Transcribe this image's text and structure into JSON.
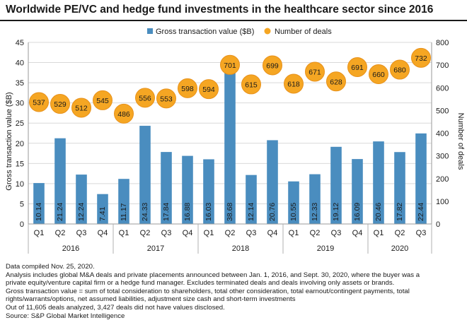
{
  "title": "Worldwide PE/VC and hedge fund investments in the healthcare sector since 2016",
  "colors": {
    "bar": "#4a8dbf",
    "bubble": "#f5a623",
    "bubble_stroke": "#e8911a",
    "grid": "#d9d9d9",
    "text": "#1a1a1a"
  },
  "chart_data": {
    "type": "bar",
    "quarters": [
      "Q1",
      "Q2",
      "Q3",
      "Q4",
      "Q1",
      "Q2",
      "Q3",
      "Q4",
      "Q1",
      "Q2",
      "Q3",
      "Q4",
      "Q1",
      "Q2",
      "Q3",
      "Q4",
      "Q1",
      "Q2",
      "Q3"
    ],
    "years": [
      {
        "label": "2016",
        "start": 0,
        "end": 3
      },
      {
        "label": "2017",
        "start": 4,
        "end": 7
      },
      {
        "label": "2018",
        "start": 8,
        "end": 11
      },
      {
        "label": "2019",
        "start": 12,
        "end": 15
      },
      {
        "label": "2020",
        "start": 16,
        "end": 18
      }
    ],
    "series": [
      {
        "name": "Gross transaction value ($B)",
        "kind": "bar",
        "axis": "left",
        "values": [
          10.14,
          21.24,
          12.24,
          7.41,
          11.17,
          24.33,
          17.84,
          16.88,
          16.03,
          38.68,
          12.14,
          20.76,
          10.55,
          12.33,
          19.12,
          16.09,
          20.46,
          17.82,
          22.44
        ]
      },
      {
        "name": "Number of deals",
        "kind": "bubble",
        "axis": "right",
        "values": [
          537,
          529,
          512,
          545,
          486,
          556,
          553,
          598,
          594,
          701,
          615,
          699,
          618,
          671,
          628,
          691,
          660,
          680,
          732
        ]
      }
    ],
    "ylabel": "Gross transaction value ($B)",
    "y2label": "Number of deals",
    "ylim": [
      0,
      45
    ],
    "yticks": [
      0,
      5,
      10,
      15,
      20,
      25,
      30,
      35,
      40,
      45
    ],
    "y2lim": [
      0,
      800
    ],
    "y2ticks": [
      0,
      100,
      200,
      300,
      400,
      500,
      600,
      700,
      800
    ],
    "legend_position": "top-center",
    "grid": true
  },
  "notes": [
    "Data compiled Nov. 25, 2020.",
    "Analysis includes global M&A deals and private placements announced between Jan. 1, 2016, and Sept. 30, 2020, where the buyer was a",
    "private equity/venture capital firm or a hedge fund manager. Excludes terminated deals and deals involving only assets or brands.",
    "Gross transaction value = sum of total consideration to shareholders, total other consideration, total earnout/contingent payments, total",
    "rights/warrants/options, net assumed liabilities, adjustment size cash and short-term investments",
    "Out of 11,605 deals analyzed, 3,427 deals did not have values disclosed.",
    "Source: S&P Global Market Intelligence"
  ]
}
